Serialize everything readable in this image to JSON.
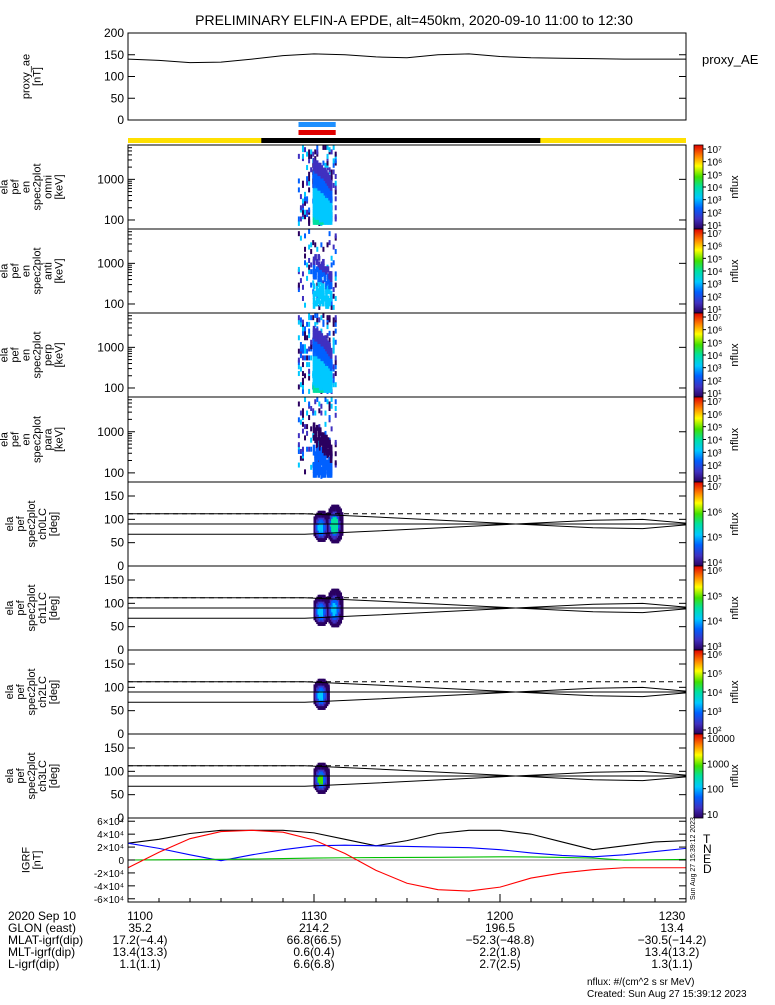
{
  "title": "PRELIMINARY ELFIN-A EPDE, alt=450km, 2020-09-10 11:00 to 12:30",
  "colors": {
    "state_yellow": "#ffe000",
    "state_black": "#000000",
    "bar_blue": "#1e90ff",
    "bar_red": "#e00000",
    "grf_T": "#000000",
    "grf_N": "#0000ff",
    "grf_E": "#00c000",
    "grf_D": "#ff0000"
  },
  "chart_data": [
    {
      "type": "line",
      "ylabel_lines": [
        "proxy_ae",
        "[nT]"
      ],
      "ylim": [
        0,
        200
      ],
      "yticks": [
        "0",
        "50",
        "100",
        "150",
        "200"
      ],
      "legend": "proxy_AE",
      "x_minutes": [
        0,
        5,
        10,
        15,
        20,
        25,
        30,
        35,
        40,
        45,
        50,
        55,
        60,
        65,
        70,
        75,
        80,
        85,
        90
      ],
      "values": [
        140,
        137,
        132,
        133,
        140,
        148,
        152,
        150,
        145,
        143,
        150,
        152,
        146,
        143,
        142,
        141,
        140,
        140,
        140
      ]
    },
    {
      "type": "heatmap",
      "ylabel_lines": [
        "ela",
        "pef",
        "en",
        "spec2plot",
        "omni",
        "[keV]"
      ],
      "yaxis": "log",
      "ylim": [
        60,
        7000
      ],
      "yticks": [
        "100",
        "1000"
      ],
      "colorbar": {
        "label": "nflux",
        "ticks": [
          "10¹",
          "10²",
          "10³",
          "10⁴",
          "10⁵",
          "10⁶",
          "10⁷"
        ]
      }
    },
    {
      "type": "heatmap",
      "ylabel_lines": [
        "ela",
        "pef",
        "en",
        "spec2plot",
        "anti",
        "[keV]"
      ],
      "yaxis": "log",
      "ylim": [
        60,
        7000
      ],
      "yticks": [
        "100",
        "1000"
      ],
      "colorbar": {
        "label": "nflux",
        "ticks": [
          "10¹",
          "10²",
          "10³",
          "10⁴",
          "10⁵",
          "10⁶",
          "10⁷"
        ]
      }
    },
    {
      "type": "heatmap",
      "ylabel_lines": [
        "ela",
        "pef",
        "en",
        "spec2plot",
        "perp",
        "[keV]"
      ],
      "yaxis": "log",
      "ylim": [
        60,
        7000
      ],
      "yticks": [
        "100",
        "1000"
      ],
      "colorbar": {
        "label": "nflux",
        "ticks": [
          "10¹",
          "10²",
          "10³",
          "10⁴",
          "10⁵",
          "10⁶",
          "10⁷"
        ]
      }
    },
    {
      "type": "heatmap",
      "ylabel_lines": [
        "ela",
        "pef",
        "en",
        "spec2plot",
        "para",
        "[keV]"
      ],
      "yaxis": "log",
      "ylim": [
        60,
        7000
      ],
      "yticks": [
        "100",
        "1000"
      ],
      "colorbar": {
        "label": "nflux",
        "ticks": [
          "10¹",
          "10²",
          "10³",
          "10⁴",
          "10⁵",
          "10⁶",
          "10⁷"
        ]
      }
    },
    {
      "type": "heatmap",
      "ylabel_lines": [
        "ela",
        "pef",
        "spec2plot",
        "ch0LC",
        "[deg]"
      ],
      "ylim": [
        0,
        180
      ],
      "yticks": [
        "0",
        "50",
        "100",
        "150"
      ],
      "colorbar": {
        "label": "nflux",
        "ticks": [
          "10⁴",
          "10⁵",
          "10⁶",
          "10⁷"
        ]
      }
    },
    {
      "type": "heatmap",
      "ylabel_lines": [
        "ela",
        "pef",
        "spec2plot",
        "ch1LC",
        "[deg]"
      ],
      "ylim": [
        0,
        180
      ],
      "yticks": [
        "0",
        "50",
        "100",
        "150"
      ],
      "colorbar": {
        "label": "nflux",
        "ticks": [
          "10³",
          "10⁴",
          "10⁵",
          "10⁶"
        ]
      }
    },
    {
      "type": "heatmap",
      "ylabel_lines": [
        "ela",
        "pef",
        "spec2plot",
        "ch2LC",
        "[deg]"
      ],
      "ylim": [
        0,
        180
      ],
      "yticks": [
        "0",
        "50",
        "100",
        "150"
      ],
      "colorbar": {
        "label": "nflux",
        "ticks": [
          "10²",
          "10³",
          "10⁴",
          "10⁵",
          "10⁶"
        ]
      }
    },
    {
      "type": "heatmap",
      "ylabel_lines": [
        "ela",
        "pef",
        "spec2plot",
        "ch3LC",
        "[deg]"
      ],
      "ylim": [
        0,
        180
      ],
      "yticks": [
        "0",
        "50",
        "100",
        "150"
      ],
      "colorbar": {
        "label": "nflux",
        "ticks": [
          "10",
          "100",
          "1000",
          "10000"
        ]
      }
    },
    {
      "type": "line",
      "ylabel_lines": [
        "IGRF",
        "[nT]"
      ],
      "ylim": [
        -65000,
        65000
      ],
      "yticks": [
        "-6×10⁴",
        "-4×10⁴",
        "-2×10⁴",
        "0",
        "2×10⁴",
        "4×10⁴",
        "6×10⁴"
      ],
      "legend": [
        "T",
        "N",
        "E",
        "D"
      ],
      "x_minutes": [
        0,
        5,
        10,
        15,
        20,
        25,
        30,
        35,
        40,
        45,
        50,
        55,
        60,
        65,
        70,
        75,
        80,
        85,
        90
      ],
      "series": [
        {
          "name": "T",
          "values": [
            26000,
            32000,
            41000,
            46000,
            46000,
            46000,
            42000,
            32000,
            22000,
            30000,
            41000,
            46000,
            46000,
            40000,
            28000,
            16000,
            22000,
            28000,
            30000
          ]
        },
        {
          "name": "N",
          "values": [
            26000,
            18000,
            8000,
            -1000,
            8000,
            16000,
            22000,
            23000,
            22000,
            21000,
            20000,
            19000,
            16000,
            11000,
            7000,
            5000,
            8000,
            13000,
            18000
          ]
        },
        {
          "name": "E",
          "values": [
            0,
            300,
            700,
            1000,
            1500,
            2200,
            3000,
            3500,
            3800,
            4000,
            4200,
            4500,
            5000,
            4800,
            4000,
            3000,
            -200,
            400,
            900
          ]
        },
        {
          "name": "D",
          "values": [
            -12000,
            12000,
            33000,
            44000,
            46000,
            43000,
            31000,
            10000,
            -16000,
            -36000,
            -46000,
            -48000,
            -42000,
            -28000,
            -20000,
            -15000,
            -12000,
            -12000,
            -12000
          ]
        }
      ]
    }
  ],
  "bottom_axis": {
    "rows": [
      {
        "label": "2020 Sep 10",
        "values": [
          "1100",
          "1130",
          "1200",
          "1230"
        ]
      },
      {
        "label": "GLON (east)",
        "values": [
          "35.2",
          "214.2",
          "196.5",
          "13.4"
        ]
      },
      {
        "label": "MLAT-igrf(dip)",
        "values": [
          "17.2(−4.4)",
          "66.8(66.5)",
          "−52.3(−48.8)",
          "−30.5(−14.2)"
        ]
      },
      {
        "label": "MLT-igrf(dip)",
        "values": [
          "13.4(13.3)",
          "0.6(0.4)",
          "2.2(1.8)",
          "13.4(13.2)"
        ]
      },
      {
        "label": "L-igrf(dip)",
        "values": [
          "1.1(1.1)",
          "6.6(6.8)",
          "2.7(2.5)",
          "1.3(1.1)"
        ]
      }
    ]
  },
  "footer": {
    "units": "nflux: #/(cm^2 s sr MeV)",
    "created": "Created: Sun Aug 27 15:39:12 2023",
    "side_stamp": "Sun Aug 27 15:39:12 2023"
  }
}
